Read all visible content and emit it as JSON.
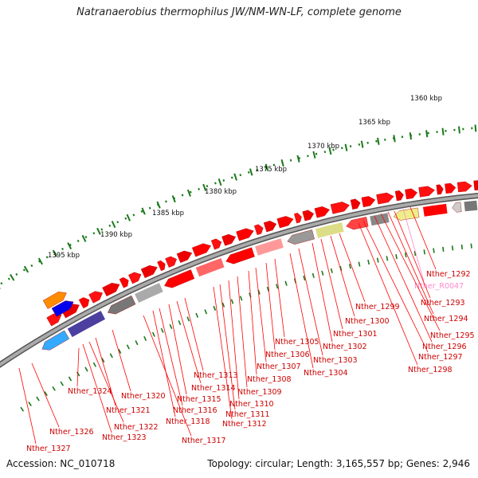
{
  "title": "Natranaerobius thermophilus JW/NM-WN-LF, complete genome",
  "footer": {
    "accession": "Accession: NC_010718",
    "summary": "Topology: circular; Length: 3,165,557 bp; Genes: 2,946"
  },
  "scale": {
    "ticks": [
      "1360 kbp",
      "1365 kbp",
      "1370 kbp",
      "1375 kbp",
      "1380 kbp",
      "1385 kbp",
      "1390 kbp",
      "1395 kbp"
    ]
  },
  "colors": {
    "cds": "#ff0000",
    "rna": "#ff88cc",
    "label_line": "#ff0000",
    "label_text": "#cc0000",
    "rna_label": "#ff88cc",
    "backbone": "#888888",
    "tick": "#1a7a1a"
  },
  "gene_labels": [
    "Nther_1292",
    "Nther_R0047",
    "Nther_1293",
    "Nther_1294",
    "Nther_1295",
    "Nther_1296",
    "Nther_1297",
    "Nther_1298",
    "Nther_1299",
    "Nther_1300",
    "Nther_1301",
    "Nther_1302",
    "Nther_1303",
    "Nther_1304",
    "Nther_1305",
    "Nther_1306",
    "Nther_1307",
    "Nther_1308",
    "Nther_1309",
    "Nther_1310",
    "Nther_1311",
    "Nther_1312",
    "Nther_1313",
    "Nther_1314",
    "Nther_1315",
    "Nther_1316",
    "Nther_1318",
    "Nther_1317",
    "Nther_1320",
    "Nther_1321",
    "Nther_1322",
    "Nther_1323",
    "Nther_1324",
    "Nther_1326",
    "Nther_1327"
  ]
}
